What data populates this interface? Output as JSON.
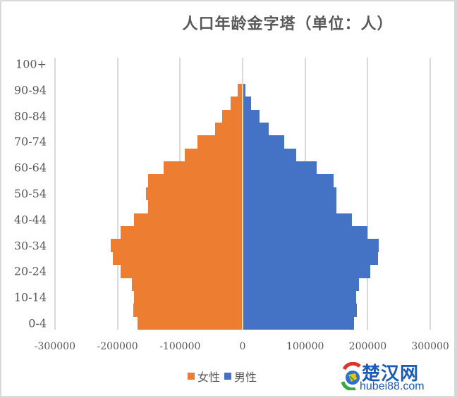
{
  "chart_data": {
    "type": "bar",
    "orientation": "horizontal",
    "subtype": "population-pyramid",
    "title": "人口年龄金字塔（单位：人）",
    "categories": [
      "0-4",
      "5-9",
      "10-14",
      "15-19",
      "20-24",
      "25-29",
      "30-34",
      "35-39",
      "40-44",
      "45-49",
      "50-54",
      "55-59",
      "60-64",
      "65-69",
      "70-74",
      "75-79",
      "80-84",
      "85-89",
      "90-94",
      "95-99",
      "100+"
    ],
    "category_tick_labels": [
      "0-4",
      "10-14",
      "20-24",
      "30-34",
      "40-44",
      "50-54",
      "60-64",
      "70-74",
      "80-84",
      "90-94",
      "100+"
    ],
    "series": [
      {
        "name": "女性",
        "color": "#ed7d31",
        "values": [
          -168500,
          -174500,
          -173500,
          -177000,
          -195000,
          -208000,
          -211000,
          -195000,
          -173500,
          -151500,
          -154000,
          -151000,
          -126000,
          -93000,
          -72000,
          -44000,
          -33000,
          -19500,
          -8000,
          -1500,
          0
        ]
      },
      {
        "name": "男性",
        "color": "#4472c4",
        "values": [
          178000,
          183000,
          182000,
          186000,
          204000,
          216000,
          218000,
          199000,
          175000,
          150000,
          150000,
          145000,
          118000,
          86000,
          66000,
          42000,
          26500,
          14000,
          4000,
          1000,
          1000
        ]
      }
    ],
    "xlabel": "",
    "ylabel": "",
    "xlim": [
      -300000,
      300000
    ],
    "xticks": [
      -300000,
      -200000,
      -100000,
      0,
      100000,
      200000,
      300000
    ],
    "xtick_labels": [
      "-300000",
      "-200000",
      "-100000",
      "0",
      "100000",
      "200000",
      "300000"
    ],
    "grid": "vertical",
    "legend_position": "bottom"
  },
  "legend": [
    {
      "label": "女性",
      "color": "#ed7d31"
    },
    {
      "label": "男性",
      "color": "#4472c4"
    }
  ],
  "watermark": {
    "name": "楚汉网",
    "url": "hubei88.com"
  }
}
